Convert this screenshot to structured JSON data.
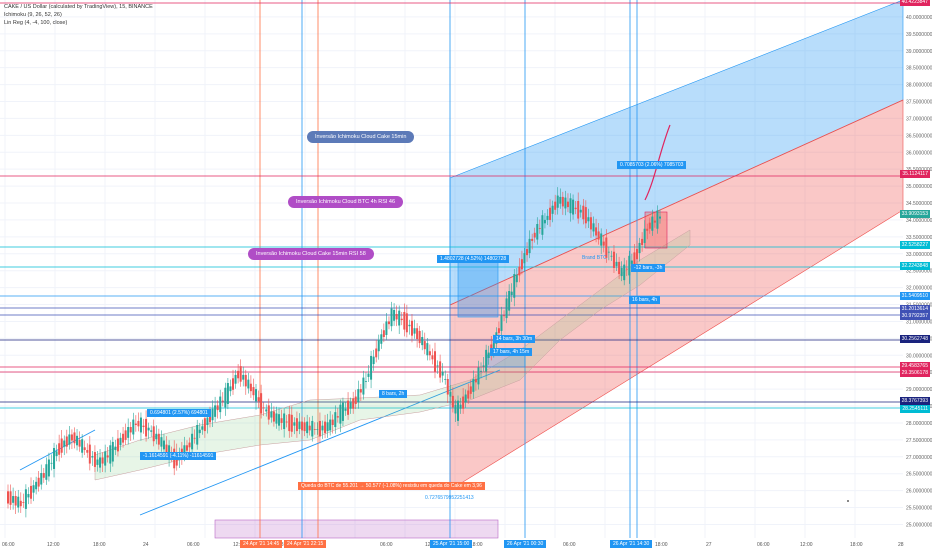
{
  "legend": {
    "line1": "CAKE / US Dollar (calculated by TradingView), 15, BINANCE",
    "line2": "Ichimoku (9, 26, 52, 26)",
    "line3": "Lin Reg (4, -4, 100, close)"
  },
  "annotations": {
    "bubble1": "Inversão Ichimoku Cloud Cake 15min",
    "bubble2": "Inversão Ichimoku Cloud BTC 4h RSI 46",
    "bubble3": "Inversão Ichimoku Cloud Cake 15min RSI 58",
    "note_orange": "Queda do BTC de 55.201 → 50.577 (-1.08%) resistiu em queda do Cake em 3,96",
    "fib_value": "0.7276579952251413",
    "brand_note": "Brand BTC"
  },
  "measure_tags": {
    "m1": "0.694801 (2.57%) 694801",
    "m2": "-1.1614591 (-4.11%) -11614591",
    "m3": "1.4802728 (4.52%) 14802728",
    "m4": "0.7085703 (2.06%) 7085703",
    "bars1": "8 bars, 2h",
    "bars2": "14 bars, 3h 30m",
    "bars3": "17 bars, 4h 15m",
    "bars4": "-12 bars, -3h",
    "bars5": "16 bars, 4h"
  },
  "price_labels": [
    {
      "value": "40.4223847",
      "color": "#e0245e"
    },
    {
      "value": "35.1124117",
      "color": "#e0245e"
    },
    {
      "value": "33.9093153",
      "color": "#26a69a"
    },
    {
      "value": "32.5258227",
      "color": "#00bcd4"
    },
    {
      "value": "32.2243848",
      "color": "#00bcd4"
    },
    {
      "value": "31.5409510",
      "color": "#2196f3"
    },
    {
      "value": "31.2013614",
      "color": "#3f51b5"
    },
    {
      "value": "30.9792357",
      "color": "#3f51b5"
    },
    {
      "value": "30.2562748",
      "color": "#1a237e"
    },
    {
      "value": "29.4583765",
      "color": "#e0245e"
    },
    {
      "value": "29.3506178",
      "color": "#e0245e"
    },
    {
      "value": "28.3767393",
      "color": "#1a237e"
    },
    {
      "value": "28.2545111",
      "color": "#00bcd4"
    }
  ],
  "x_labels": [
    "06:00",
    "12:00",
    "18:00",
    "24",
    "06:00",
    "12:00",
    "18:00",
    "06:00",
    "12:00",
    "18:00",
    "06:00",
    "12:00",
    "18:00",
    "27",
    "06:00",
    "12:00",
    "18:00",
    "28"
  ],
  "x_tags": [
    {
      "text": "24 Apr '21  14:45",
      "color": "#ff7043"
    },
    {
      "text": "24 Apr '21  22:15",
      "color": "#ff7043"
    },
    {
      "text": "25 Apr '21  15:00",
      "color": "#2196f3"
    },
    {
      "text": "26 Apr '21  00:30",
      "color": "#2196f3"
    },
    {
      "text": "26 Apr '21  14:30",
      "color": "#2196f3"
    }
  ],
  "chart_data": {
    "type": "candlestick",
    "title": "CAKE / US Dollar (calculated by TradingView), 15, BINANCE",
    "ylim": [
      24.6,
      40.5
    ],
    "y_ticks": [
      25,
      25.5,
      26,
      26.5,
      27,
      27.5,
      28,
      28.5,
      29,
      29.5,
      30,
      30.5,
      31,
      31.5,
      32,
      32.5,
      33,
      33.5,
      34,
      34.5,
      35,
      35.5,
      36,
      36.5,
      37,
      37.5,
      38,
      38.5,
      39,
      39.5,
      40
    ],
    "up_color": "#26a69a",
    "down_color": "#ef5350",
    "close_trend": [
      25.8,
      25.6,
      26.1,
      26.6,
      27.3,
      27.6,
      27.2,
      26.8,
      27.1,
      27.6,
      28.0,
      27.8,
      27.4,
      26.9,
      27.3,
      27.8,
      28.3,
      28.8,
      29.5,
      29.0,
      28.4,
      28.1,
      28.0,
      27.9,
      27.8,
      27.9,
      28.3,
      28.6,
      29.3,
      30.4,
      31.2,
      31.0,
      30.6,
      30.0,
      29.4,
      28.3,
      28.9,
      29.6,
      30.4,
      31.5,
      32.6,
      33.5,
      34.0,
      34.6,
      34.4,
      34.2,
      33.6,
      33.0,
      32.4,
      32.9,
      33.8,
      34.1
    ]
  }
}
